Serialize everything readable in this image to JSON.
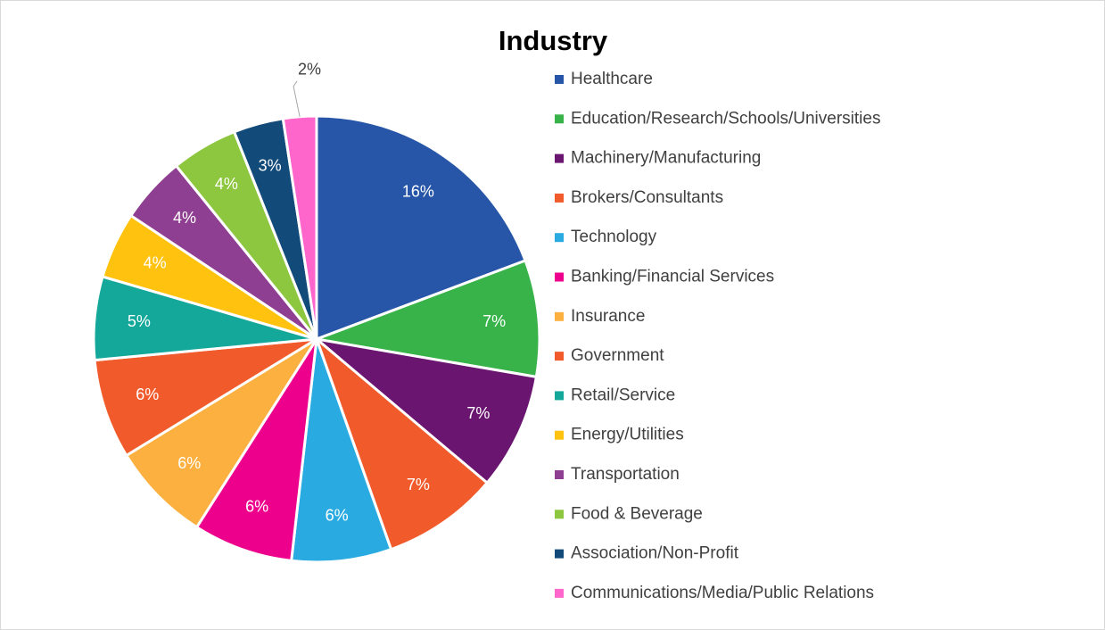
{
  "chart_data": {
    "type": "pie",
    "title": "Industry",
    "categories": [
      "Healthcare",
      "Education/Research/Schools/Universities",
      "Machinery/Manufacturing",
      "Brokers/Consultants",
      "Technology",
      "Banking/Financial Services",
      "Insurance",
      "Government",
      "Retail/Service",
      "Energy/Utilities",
      "Transportation",
      "Food & Beverage",
      "Association/Non-Profit",
      "Communications/Media/Public Relations"
    ],
    "values": [
      16,
      7,
      7,
      7,
      6,
      6,
      6,
      6,
      5,
      4,
      4,
      4,
      3,
      2
    ],
    "value_labels": [
      "16%",
      "7%",
      "7%",
      "7%",
      "6%",
      "6%",
      "6%",
      "6%",
      "5%",
      "4%",
      "4%",
      "4%",
      "3%",
      "2%"
    ],
    "colors": [
      "#2756a8",
      "#38b34a",
      "#6a1570",
      "#f15a2b",
      "#29abe2",
      "#ec008c",
      "#fbb040",
      "#f15a2b",
      "#14a89a",
      "#ffc20e",
      "#8e3f91",
      "#8dc63f",
      "#124b7a",
      "#ff66cc"
    ],
    "legend": "right"
  }
}
